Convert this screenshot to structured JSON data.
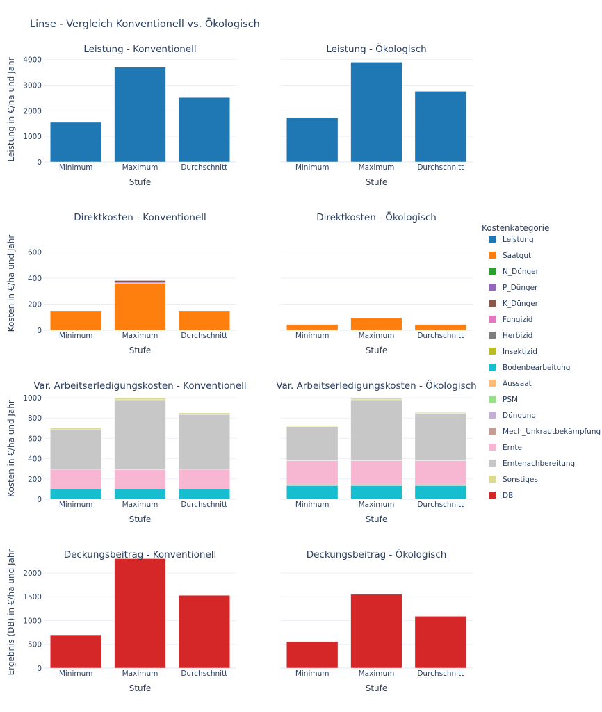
{
  "figure_title": "Linse - Vergleich Konventionell vs. Ökologisch",
  "legend": {
    "title": "Kostenkategorie",
    "items": [
      {
        "label": "Leistung",
        "color": "#1f77b4"
      },
      {
        "label": "Saatgut",
        "color": "#ff7f0e"
      },
      {
        "label": "N_Dünger",
        "color": "#2ca02c"
      },
      {
        "label": "P_Dünger",
        "color": "#9467bd"
      },
      {
        "label": "K_Dünger",
        "color": "#8c564b"
      },
      {
        "label": "Fungizid",
        "color": "#e377c2"
      },
      {
        "label": "Herbizid",
        "color": "#7f7f7f"
      },
      {
        "label": "Insektizid",
        "color": "#bcbd22"
      },
      {
        "label": "Bodenbearbeitung",
        "color": "#17becf"
      },
      {
        "label": "Aussaat",
        "color": "#ffbb78"
      },
      {
        "label": "PSM",
        "color": "#98df8a"
      },
      {
        "label": "Düngung",
        "color": "#c5b0d5"
      },
      {
        "label": "Mech_Unkrautbekämpfung",
        "color": "#c49c94"
      },
      {
        "label": "Ernte",
        "color": "#f7b6d2"
      },
      {
        "label": "Erntenachbereitung",
        "color": "#c7c7c7"
      },
      {
        "label": "Sonstiges",
        "color": "#dbdb8d"
      },
      {
        "label": "DB",
        "color": "#d62728"
      }
    ]
  },
  "chart_data": [
    {
      "type": "bar",
      "row": 0,
      "col": 0,
      "title": "Leistung - Konventionell",
      "xlabel": "Stufe",
      "ylabel": "Leistung in €/ha und Jahr",
      "categories": [
        "Minimum",
        "Maximum",
        "Durchschnitt"
      ],
      "ylim": [
        0,
        4100
      ],
      "yticks": [
        0,
        1000,
        2000,
        3000,
        4000
      ],
      "show_ytick_labels": true,
      "series": [
        {
          "name": "Leistung",
          "values": [
            1550,
            3700,
            2520
          ]
        }
      ]
    },
    {
      "type": "bar",
      "row": 0,
      "col": 1,
      "title": "Leistung - Ökologisch",
      "xlabel": "Stufe",
      "ylabel": "",
      "categories": [
        "Minimum",
        "Maximum",
        "Durchschnitt"
      ],
      "ylim": [
        0,
        4100
      ],
      "yticks": [
        0,
        1000,
        2000,
        3000,
        4000
      ],
      "show_ytick_labels": false,
      "series": [
        {
          "name": "Leistung",
          "values": [
            1740,
            3900,
            2760
          ]
        }
      ]
    },
    {
      "type": "bar",
      "stacked": true,
      "row": 1,
      "col": 0,
      "title": "Direktkosten - Konventionell",
      "xlabel": "Stufe",
      "ylabel": "Kosten in €/ha und Jahr",
      "categories": [
        "Minimum",
        "Maximum",
        "Durchschnitt"
      ],
      "ylim": [
        0,
        720
      ],
      "yticks": [
        0,
        200,
        400,
        600
      ],
      "show_ytick_labels": true,
      "series": [
        {
          "name": "Saatgut",
          "values": [
            150,
            360,
            150
          ]
        },
        {
          "name": "P_Dünger",
          "values": [
            0,
            8,
            0
          ]
        },
        {
          "name": "K_Dünger",
          "values": [
            0,
            12,
            0
          ]
        },
        {
          "name": "Herbizid",
          "values": [
            0,
            5,
            0
          ]
        }
      ]
    },
    {
      "type": "bar",
      "stacked": true,
      "row": 1,
      "col": 1,
      "title": "Direktkosten - Ökologisch",
      "xlabel": "Stufe",
      "ylabel": "",
      "categories": [
        "Minimum",
        "Maximum",
        "Durchschnitt"
      ],
      "ylim": [
        0,
        720
      ],
      "yticks": [
        0,
        200,
        400,
        600
      ],
      "show_ytick_labels": false,
      "series": [
        {
          "name": "Saatgut",
          "values": [
            45,
            95,
            45
          ]
        }
      ]
    },
    {
      "type": "bar",
      "stacked": true,
      "row": 2,
      "col": 0,
      "title": "Var. Arbeitserledigungskosten - Konventionell",
      "xlabel": "Stufe",
      "ylabel": "Kosten in €/ha und Jahr",
      "categories": [
        "Minimum",
        "Maximum",
        "Durchschnitt"
      ],
      "ylim": [
        0,
        1000
      ],
      "yticks": [
        0,
        200,
        400,
        600,
        800,
        1000
      ],
      "show_ytick_labels": true,
      "series": [
        {
          "name": "Bodenbearbeitung",
          "values": [
            100,
            100,
            100
          ]
        },
        {
          "name": "Ernte",
          "values": [
            195,
            190,
            195
          ]
        },
        {
          "name": "Erntenachbereitung",
          "values": [
            390,
            690,
            540
          ]
        },
        {
          "name": "Sonstiges",
          "values": [
            15,
            20,
            15
          ]
        }
      ]
    },
    {
      "type": "bar",
      "stacked": true,
      "row": 2,
      "col": 1,
      "title": "Var. Arbeitserledigungskosten - Ökologisch",
      "xlabel": "Stufe",
      "ylabel": "",
      "categories": [
        "Minimum",
        "Maximum",
        "Durchschnitt"
      ],
      "ylim": [
        0,
        1000
      ],
      "yticks": [
        0,
        200,
        400,
        600,
        800,
        1000
      ],
      "show_ytick_labels": false,
      "series": [
        {
          "name": "Bodenbearbeitung",
          "values": [
            135,
            135,
            135
          ]
        },
        {
          "name": "Mech_Unkrautbekämpfung",
          "values": [
            15,
            15,
            15
          ]
        },
        {
          "name": "Ernte",
          "values": [
            230,
            230,
            230
          ]
        },
        {
          "name": "Erntenachbereitung",
          "values": [
            335,
            600,
            465
          ]
        },
        {
          "name": "Sonstiges",
          "values": [
            10,
            15,
            10
          ]
        }
      ]
    },
    {
      "type": "bar",
      "row": 3,
      "col": 0,
      "title": "Deckungsbeitrag - Konventionell",
      "xlabel": "Stufe",
      "ylabel": "Ergebnis (DB) in €/ha und Jahr",
      "categories": [
        "Minimum",
        "Maximum",
        "Durchschnitt"
      ],
      "ylim": [
        0,
        2350
      ],
      "yticks": [
        0,
        500,
        1000,
        1500,
        2000
      ],
      "show_ytick_labels": true,
      "series": [
        {
          "name": "DB",
          "values": [
            700,
            2300,
            1530
          ]
        }
      ]
    },
    {
      "type": "bar",
      "row": 3,
      "col": 1,
      "title": "Deckungsbeitrag - Ökologisch",
      "xlabel": "Stufe",
      "ylabel": "",
      "categories": [
        "Minimum",
        "Maximum",
        "Durchschnitt"
      ],
      "ylim": [
        0,
        2350
      ],
      "yticks": [
        0,
        500,
        1000,
        1500,
        2000
      ],
      "show_ytick_labels": false,
      "series": [
        {
          "name": "DB",
          "values": [
            560,
            1550,
            1090
          ]
        }
      ]
    }
  ]
}
